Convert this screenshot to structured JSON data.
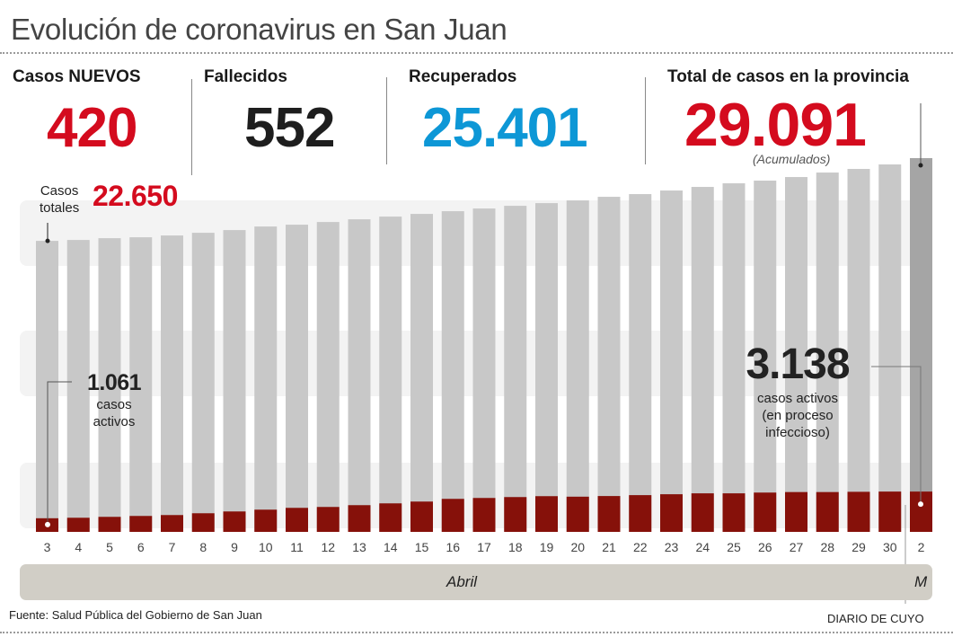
{
  "title": "Evolución de coronavirus en San Juan",
  "stats": [
    {
      "label": "Casos NUEVOS",
      "value": "420",
      "color": "#d40b1e"
    },
    {
      "label": "Fallecidos",
      "value": "552",
      "color": "#1e1e1e"
    },
    {
      "label": "Recuperados",
      "value": "25.401",
      "color": "#0d97d6"
    },
    {
      "label": "Total de casos en la provincia",
      "value": "29.091",
      "color": "#d40b1e",
      "note": "(Acumulados)"
    }
  ],
  "annotations": {
    "start_total_label_line1": "Casos",
    "start_total_label_line2": "totales",
    "start_total_value": "22.650",
    "start_active_value": "1.061",
    "start_active_line1": "casos",
    "start_active_line2": "activos",
    "end_active_value": "3.138",
    "end_active_line1": "casos activos",
    "end_active_line2": "(en proceso",
    "end_active_line3": "infeccioso)"
  },
  "months": [
    "Abril",
    "M"
  ],
  "source": "Fuente: Salud Pública del Gobierno de San Juan",
  "credit": "DIARIO DE CUYO",
  "colors": {
    "total": "#c8c8c8",
    "total_last": "#a5a5a5",
    "active": "#86110a"
  },
  "chart_data": {
    "type": "bar",
    "title": "Evolución de coronavirus en San Juan",
    "xlabel": "Abril / Mayo",
    "ylabel": "",
    "ylim": [
      0,
      29091
    ],
    "grid": false,
    "categories": [
      "3",
      "4",
      "5",
      "6",
      "7",
      "8",
      "9",
      "10",
      "11",
      "12",
      "13",
      "14",
      "15",
      "16",
      "17",
      "18",
      "19",
      "20",
      "21",
      "22",
      "23",
      "24",
      "25",
      "26",
      "27",
      "28",
      "29",
      "30",
      "2"
    ],
    "series": [
      {
        "name": "Casos totales (acumulados)",
        "values": [
          22650,
          22720,
          22860,
          22930,
          23070,
          23280,
          23490,
          23770,
          23910,
          24120,
          24330,
          24540,
          24750,
          24960,
          25170,
          25380,
          25590,
          25800,
          26080,
          26290,
          26570,
          26850,
          27130,
          27340,
          27620,
          27970,
          28250,
          28600,
          29091
        ]
      },
      {
        "name": "Casos activos",
        "values": [
          1061,
          1100,
          1170,
          1240,
          1310,
          1450,
          1590,
          1730,
          1870,
          1940,
          2080,
          2220,
          2360,
          2570,
          2640,
          2710,
          2780,
          2740,
          2790,
          2860,
          2930,
          3000,
          3000,
          3060,
          3100,
          3100,
          3120,
          3138,
          3138
        ]
      }
    ]
  }
}
